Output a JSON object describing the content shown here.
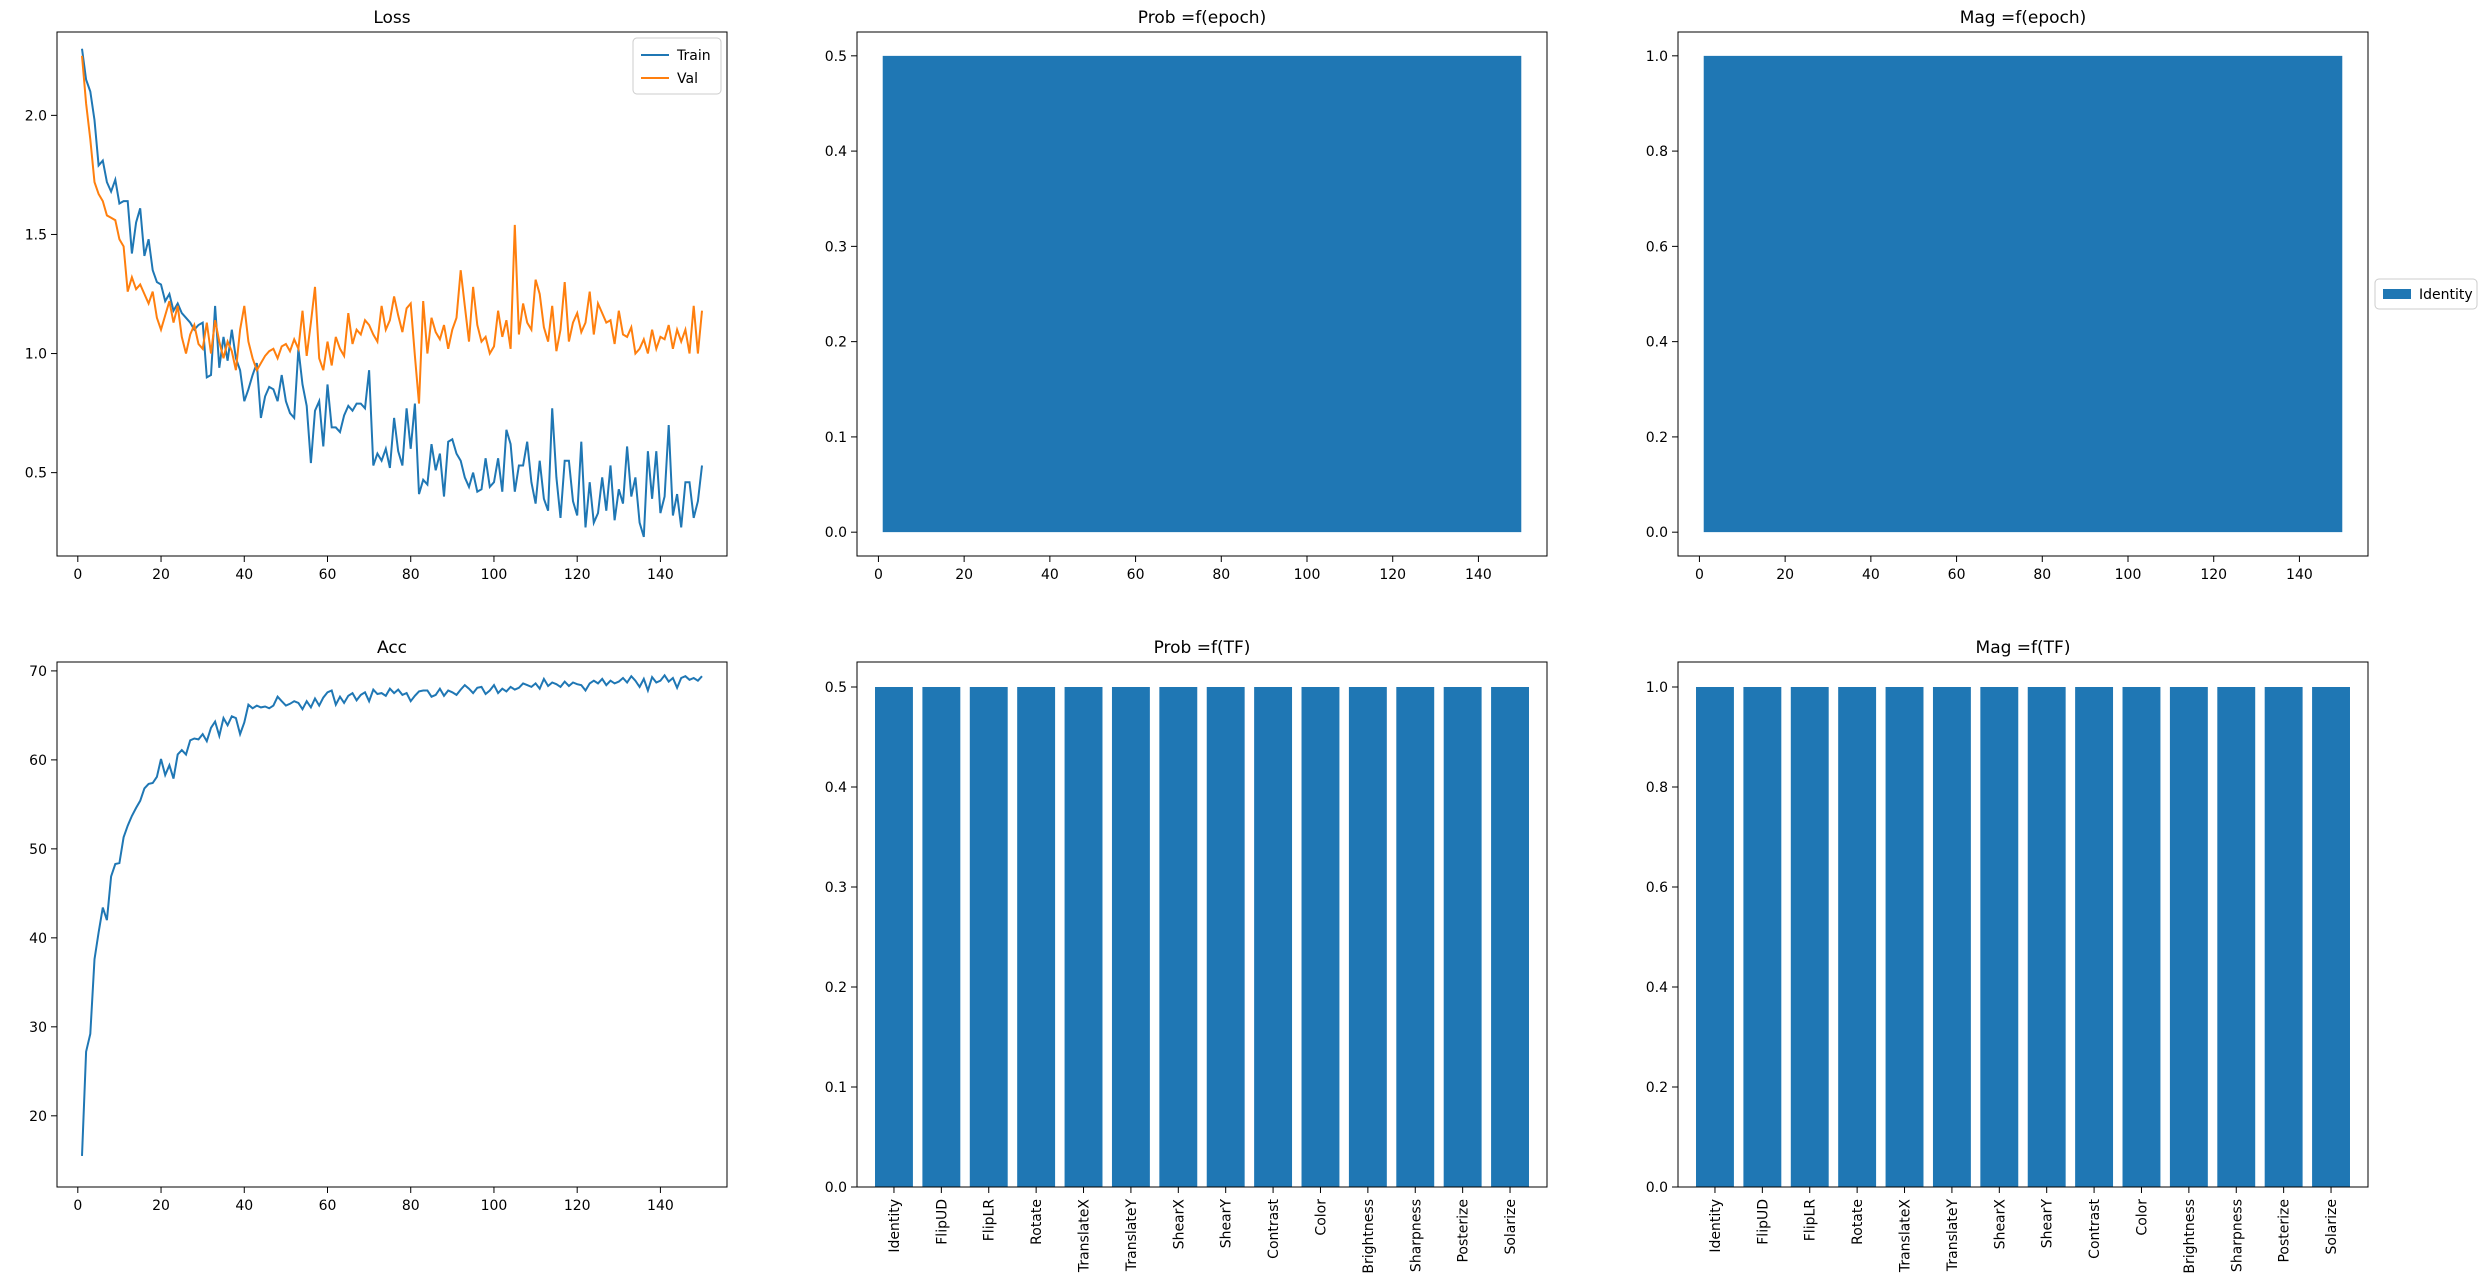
{
  "colors": {
    "blue": "#1f77b4",
    "orange": "#ff7f0e"
  },
  "chart_data": [
    {
      "id": "loss",
      "type": "line",
      "title": "Loss",
      "xlabel": "",
      "ylabel": "",
      "xlim": [
        -5,
        156
      ],
      "ylim": [
        0.15,
        2.35
      ],
      "xticks": [
        0,
        20,
        40,
        60,
        80,
        100,
        120,
        140
      ],
      "yticks": [
        0.5,
        1.0,
        1.5,
        2.0
      ],
      "grid": false,
      "legend": "top-right",
      "series": [
        {
          "name": "Train",
          "color": "#1f77b4",
          "x": [
            1,
            2,
            3,
            4,
            5,
            6,
            7,
            8,
            9,
            10,
            11,
            12,
            13,
            14,
            15,
            16,
            17,
            18,
            19,
            20,
            21,
            22,
            23,
            24,
            25,
            26,
            27,
            28,
            29,
            30,
            31,
            32,
            33,
            34,
            35,
            36,
            37,
            38,
            39,
            40,
            41,
            42,
            43,
            44,
            45,
            46,
            47,
            48,
            49,
            50,
            51,
            52,
            53,
            54,
            55,
            56,
            57,
            58,
            59,
            60,
            61,
            62,
            63,
            64,
            65,
            66,
            67,
            68,
            69,
            70,
            71,
            72,
            73,
            74,
            75,
            76,
            77,
            78,
            79,
            80,
            81,
            82,
            83,
            84,
            85,
            86,
            87,
            88,
            89,
            90,
            91,
            92,
            93,
            94,
            95,
            96,
            97,
            98,
            99,
            100,
            101,
            102,
            103,
            104,
            105,
            106,
            107,
            108,
            109,
            110,
            111,
            112,
            113,
            114,
            115,
            116,
            117,
            118,
            119,
            120,
            121,
            122,
            123,
            124,
            125,
            126,
            127,
            128,
            129,
            130,
            131,
            132,
            133,
            134,
            135,
            136,
            137,
            138,
            139,
            140,
            141,
            142,
            143,
            144,
            145,
            146,
            147,
            148,
            149,
            150
          ],
          "y": [
            2.28,
            2.15,
            2.1,
            1.98,
            1.79,
            1.81,
            1.72,
            1.68,
            1.73,
            1.63,
            1.64,
            1.64,
            1.42,
            1.55,
            1.61,
            1.41,
            1.48,
            1.35,
            1.3,
            1.29,
            1.22,
            1.25,
            1.18,
            1.21,
            1.17,
            1.15,
            1.13,
            1.1,
            1.12,
            1.13,
            0.9,
            0.91,
            1.2,
            0.94,
            1.07,
            0.97,
            1.1,
            0.98,
            0.93,
            0.8,
            0.85,
            0.91,
            0.96,
            0.73,
            0.82,
            0.86,
            0.85,
            0.8,
            0.91,
            0.8,
            0.75,
            0.73,
            1.02,
            0.87,
            0.78,
            0.54,
            0.76,
            0.8,
            0.61,
            0.87,
            0.69,
            0.69,
            0.67,
            0.74,
            0.78,
            0.76,
            0.79,
            0.79,
            0.77,
            0.93,
            0.53,
            0.58,
            0.55,
            0.6,
            0.52,
            0.73,
            0.59,
            0.53,
            0.77,
            0.6,
            0.79,
            0.41,
            0.47,
            0.45,
            0.62,
            0.51,
            0.58,
            0.4,
            0.63,
            0.64,
            0.58,
            0.55,
            0.48,
            0.44,
            0.5,
            0.42,
            0.43,
            0.56,
            0.44,
            0.46,
            0.56,
            0.42,
            0.68,
            0.62,
            0.42,
            0.53,
            0.53,
            0.63,
            0.46,
            0.37,
            0.55,
            0.39,
            0.34,
            0.77,
            0.48,
            0.31,
            0.55,
            0.55,
            0.38,
            0.32,
            0.63,
            0.27,
            0.46,
            0.29,
            0.33,
            0.48,
            0.34,
            0.53,
            0.3,
            0.43,
            0.37,
            0.61,
            0.4,
            0.48,
            0.29,
            0.23,
            0.59,
            0.39,
            0.59,
            0.33,
            0.4,
            0.7,
            0.32,
            0.41,
            0.27,
            0.46,
            0.46,
            0.31,
            0.38,
            0.53
          ]
        },
        {
          "name": "Val",
          "color": "#ff7f0e",
          "x": [
            1,
            2,
            3,
            4,
            5,
            6,
            7,
            8,
            9,
            10,
            11,
            12,
            13,
            14,
            15,
            16,
            17,
            18,
            19,
            20,
            21,
            22,
            23,
            24,
            25,
            26,
            27,
            28,
            29,
            30,
            31,
            32,
            33,
            34,
            35,
            36,
            37,
            38,
            39,
            40,
            41,
            42,
            43,
            44,
            45,
            46,
            47,
            48,
            49,
            50,
            51,
            52,
            53,
            54,
            55,
            56,
            57,
            58,
            59,
            60,
            61,
            62,
            63,
            64,
            65,
            66,
            67,
            68,
            69,
            70,
            71,
            72,
            73,
            74,
            75,
            76,
            77,
            78,
            79,
            80,
            81,
            82,
            83,
            84,
            85,
            86,
            87,
            88,
            89,
            90,
            91,
            92,
            93,
            94,
            95,
            96,
            97,
            98,
            99,
            100,
            101,
            102,
            103,
            104,
            105,
            106,
            107,
            108,
            109,
            110,
            111,
            112,
            113,
            114,
            115,
            116,
            117,
            118,
            119,
            120,
            121,
            122,
            123,
            124,
            125,
            126,
            127,
            128,
            129,
            130,
            131,
            132,
            133,
            134,
            135,
            136,
            137,
            138,
            139,
            140,
            141,
            142,
            143,
            144,
            145,
            146,
            147,
            148,
            149,
            150
          ],
          "y": [
            2.25,
            2.05,
            1.9,
            1.72,
            1.67,
            1.64,
            1.58,
            1.57,
            1.56,
            1.48,
            1.45,
            1.26,
            1.32,
            1.27,
            1.29,
            1.25,
            1.21,
            1.26,
            1.15,
            1.1,
            1.16,
            1.22,
            1.13,
            1.2,
            1.07,
            1.0,
            1.08,
            1.12,
            1.04,
            1.02,
            1.13,
            1.0,
            1.14,
            1.05,
            0.98,
            1.05,
            1.01,
            0.93,
            1.1,
            1.2,
            1.05,
            0.98,
            0.93,
            0.96,
            0.99,
            1.01,
            1.02,
            0.98,
            1.03,
            1.04,
            1.01,
            1.06,
            1.02,
            1.18,
            0.99,
            1.13,
            1.28,
            0.98,
            0.93,
            1.05,
            0.95,
            1.07,
            1.02,
            0.99,
            1.17,
            1.04,
            1.1,
            1.08,
            1.14,
            1.12,
            1.08,
            1.05,
            1.2,
            1.1,
            1.14,
            1.24,
            1.16,
            1.09,
            1.19,
            1.21,
            0.99,
            0.79,
            1.22,
            1.0,
            1.15,
            1.09,
            1.06,
            1.12,
            1.02,
            1.1,
            1.15,
            1.35,
            1.2,
            1.05,
            1.28,
            1.12,
            1.05,
            1.07,
            1.0,
            1.03,
            1.18,
            1.07,
            1.14,
            1.02,
            1.54,
            1.08,
            1.21,
            1.13,
            1.1,
            1.31,
            1.25,
            1.11,
            1.05,
            1.2,
            1.01,
            1.1,
            1.3,
            1.05,
            1.13,
            1.17,
            1.09,
            1.13,
            1.26,
            1.08,
            1.21,
            1.17,
            1.13,
            1.14,
            1.04,
            1.18,
            1.08,
            1.07,
            1.11,
            1.0,
            1.02,
            1.06,
            1.0,
            1.1,
            1.02,
            1.07,
            1.06,
            1.12,
            1.02,
            1.1,
            1.05,
            1.1,
            1.0,
            1.2,
            1.0,
            1.18
          ]
        }
      ]
    },
    {
      "id": "prob-epoch",
      "type": "area",
      "title": "Prob =f(epoch)",
      "xlabel": "",
      "ylabel": "",
      "xlim": [
        -5,
        156
      ],
      "ylim": [
        -0.025,
        0.525
      ],
      "xticks": [
        0,
        20,
        40,
        60,
        80,
        100,
        120,
        140
      ],
      "yticks": [
        0.0,
        0.1,
        0.2,
        0.3,
        0.4,
        0.5
      ],
      "grid": false,
      "series": [
        {
          "name": "Identity",
          "color": "#1f77b4",
          "x": [
            1,
            150
          ],
          "y": [
            0.5,
            0.5
          ]
        }
      ]
    },
    {
      "id": "mag-epoch",
      "type": "area",
      "title": "Mag =f(epoch)",
      "xlabel": "",
      "ylabel": "",
      "xlim": [
        -5,
        156
      ],
      "ylim": [
        -0.05,
        1.05
      ],
      "xticks": [
        0,
        20,
        40,
        60,
        80,
        100,
        120,
        140
      ],
      "yticks": [
        0.0,
        0.2,
        0.4,
        0.6,
        0.8,
        1.0
      ],
      "grid": false,
      "legend": "outside-right",
      "series": [
        {
          "name": "Identity",
          "color": "#1f77b4",
          "x": [
            1,
            150
          ],
          "y": [
            1.0,
            1.0
          ]
        }
      ]
    },
    {
      "id": "acc",
      "type": "line",
      "title": "Acc",
      "xlabel": "",
      "ylabel": "",
      "xlim": [
        -5,
        156
      ],
      "ylim": [
        12,
        71
      ],
      "xticks": [
        0,
        20,
        40,
        60,
        80,
        100,
        120,
        140
      ],
      "yticks": [
        20,
        30,
        40,
        50,
        60,
        70
      ],
      "grid": false,
      "series": [
        {
          "name": "",
          "color": "#1f77b4",
          "x": [
            1,
            2,
            3,
            4,
            5,
            6,
            7,
            8,
            9,
            10,
            11,
            12,
            13,
            14,
            15,
            16,
            17,
            18,
            19,
            20,
            21,
            22,
            23,
            24,
            25,
            26,
            27,
            28,
            29,
            30,
            31,
            32,
            33,
            34,
            35,
            36,
            37,
            38,
            39,
            40,
            41,
            42,
            43,
            44,
            45,
            46,
            47,
            48,
            49,
            50,
            51,
            52,
            53,
            54,
            55,
            56,
            57,
            58,
            59,
            60,
            61,
            62,
            63,
            64,
            65,
            66,
            67,
            68,
            69,
            70,
            71,
            72,
            73,
            74,
            75,
            76,
            77,
            78,
            79,
            80,
            81,
            82,
            83,
            84,
            85,
            86,
            87,
            88,
            89,
            90,
            91,
            92,
            93,
            94,
            95,
            96,
            97,
            98,
            99,
            100,
            101,
            102,
            103,
            104,
            105,
            106,
            107,
            108,
            109,
            110,
            111,
            112,
            113,
            114,
            115,
            116,
            117,
            118,
            119,
            120,
            121,
            122,
            123,
            124,
            125,
            126,
            127,
            128,
            129,
            130,
            131,
            132,
            133,
            134,
            135,
            136,
            137,
            138,
            139,
            140,
            141,
            142,
            143,
            144,
            145,
            146,
            147,
            148,
            149,
            150
          ],
          "y": [
            15.5,
            27.2,
            29.2,
            37.6,
            40.6,
            43.4,
            42.0,
            46.9,
            48.3,
            48.4,
            51.3,
            52.6,
            53.7,
            54.6,
            55.4,
            56.8,
            57.3,
            57.4,
            58.1,
            60.1,
            58.3,
            59.4,
            57.9,
            60.6,
            61.1,
            60.6,
            62.2,
            62.4,
            62.3,
            62.9,
            62.1,
            63.6,
            64.3,
            62.7,
            64.7,
            63.9,
            64.9,
            64.7,
            62.9,
            64.2,
            66.2,
            65.8,
            66.1,
            65.9,
            66.0,
            65.8,
            66.1,
            67.1,
            66.6,
            66.1,
            66.3,
            66.6,
            66.4,
            65.7,
            66.6,
            65.9,
            66.9,
            66.1,
            67.0,
            67.6,
            67.8,
            66.2,
            67.1,
            66.4,
            67.2,
            67.5,
            66.7,
            67.3,
            67.6,
            66.6,
            67.9,
            67.4,
            67.5,
            67.2,
            68.0,
            67.5,
            67.9,
            67.3,
            67.5,
            66.6,
            67.2,
            67.7,
            67.8,
            67.8,
            67.1,
            67.3,
            68.0,
            67.2,
            67.8,
            67.6,
            67.3,
            67.9,
            68.4,
            68.0,
            67.5,
            68.1,
            68.2,
            67.4,
            67.8,
            68.4,
            67.5,
            68.0,
            67.7,
            68.2,
            67.9,
            68.1,
            68.6,
            68.4,
            68.2,
            68.6,
            68.0,
            69.1,
            68.3,
            68.7,
            68.5,
            68.2,
            68.8,
            68.3,
            68.7,
            68.5,
            68.4,
            67.8,
            68.6,
            68.9,
            68.6,
            69.1,
            68.4,
            68.9,
            68.6,
            68.8,
            69.2,
            68.7,
            69.4,
            68.9,
            68.2,
            69.1,
            67.8,
            69.3,
            68.7,
            68.9,
            69.5,
            68.8,
            69.2,
            68.1,
            69.2,
            69.4,
            69.0,
            69.2,
            68.9,
            69.4
          ]
        }
      ]
    },
    {
      "id": "prob-tf",
      "type": "bar",
      "title": "Prob =f(TF)",
      "xlabel": "",
      "ylabel": "",
      "ylim": [
        0,
        0.525
      ],
      "yticks": [
        0.0,
        0.1,
        0.2,
        0.3,
        0.4,
        0.5
      ],
      "grid": false,
      "color": "#1f77b4",
      "categories": [
        "Identity",
        "FlipUD",
        "FlipLR",
        "Rotate",
        "TranslateX",
        "TranslateY",
        "ShearX",
        "ShearY",
        "Contrast",
        "Color",
        "Brightness",
        "Sharpness",
        "Posterize",
        "Solarize"
      ],
      "values": [
        0.5,
        0.5,
        0.5,
        0.5,
        0.5,
        0.5,
        0.5,
        0.5,
        0.5,
        0.5,
        0.5,
        0.5,
        0.5,
        0.5
      ]
    },
    {
      "id": "mag-tf",
      "type": "bar",
      "title": "Mag =f(TF)",
      "xlabel": "",
      "ylabel": "",
      "ylim": [
        0,
        1.05
      ],
      "yticks": [
        0.0,
        0.2,
        0.4,
        0.6,
        0.8,
        1.0
      ],
      "grid": false,
      "color": "#1f77b4",
      "categories": [
        "Identity",
        "FlipUD",
        "FlipLR",
        "Rotate",
        "TranslateX",
        "TranslateY",
        "ShearX",
        "ShearY",
        "Contrast",
        "Color",
        "Brightness",
        "Sharpness",
        "Posterize",
        "Solarize"
      ],
      "values": [
        1.0,
        1.0,
        1.0,
        1.0,
        1.0,
        1.0,
        1.0,
        1.0,
        1.0,
        1.0,
        1.0,
        1.0,
        1.0,
        1.0
      ]
    }
  ]
}
